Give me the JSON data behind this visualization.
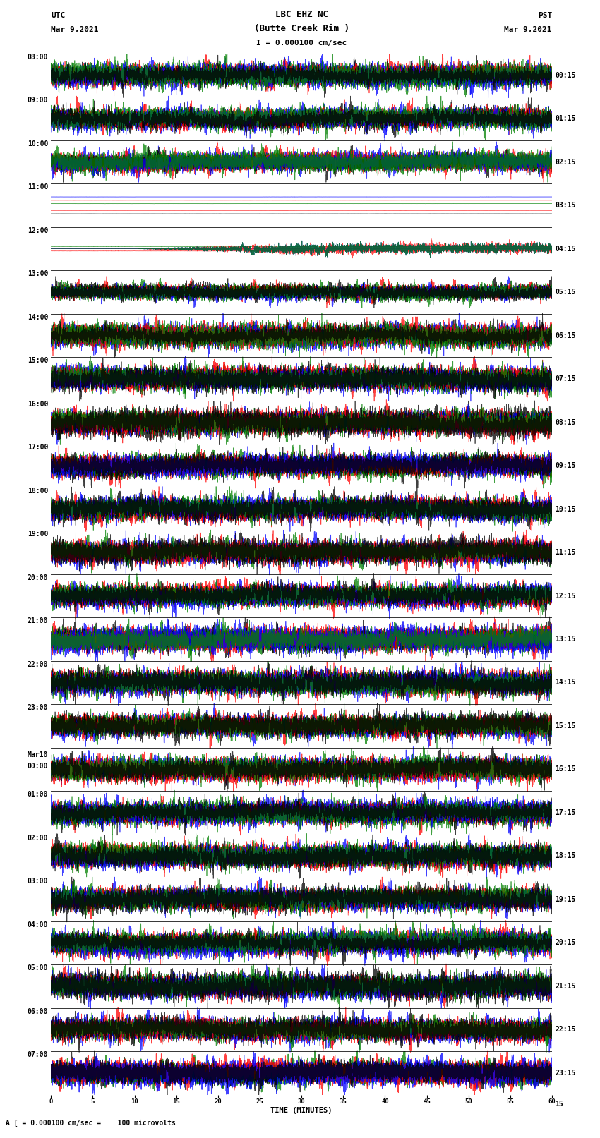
{
  "title_line1": "LBC EHZ NC",
  "title_line2": "(Butte Creek Rim )",
  "scale_text": "I = 0.000100 cm/sec",
  "left_label_top": "UTC",
  "left_label_date": "Mar 9,2021",
  "right_label_top": "PST",
  "right_label_date": "Mar 9,2021",
  "bottom_label": "A [ = 0.000100 cm/sec =    100 microvolts",
  "left_times": [
    "08:00",
    "09:00",
    "10:00",
    "11:00",
    "12:00",
    "13:00",
    "14:00",
    "15:00",
    "16:00",
    "17:00",
    "18:00",
    "19:00",
    "20:00",
    "21:00",
    "22:00",
    "23:00",
    "Mar10\n00:00",
    "01:00",
    "02:00",
    "03:00",
    "04:00",
    "05:00",
    "06:00",
    "07:00"
  ],
  "right_times": [
    "00:15",
    "01:15",
    "02:15",
    "03:15",
    "04:15",
    "05:15",
    "06:15",
    "07:15",
    "08:15",
    "09:15",
    "10:15",
    "11:15",
    "12:15",
    "13:15",
    "14:15",
    "15:15",
    "16:15",
    "17:15",
    "18:15",
    "19:15",
    "20:15",
    "21:15",
    "22:15",
    "23:15"
  ],
  "bg_color": "#ffffff",
  "n_traces": 24,
  "seed": 42,
  "trace_dominant_colors": [
    "red",
    "red",
    "red",
    "black",
    "red",
    "red",
    "red",
    "blue",
    "red",
    "green",
    "red",
    "red",
    "blue",
    "black",
    "red",
    "blue",
    "blue",
    "red",
    "red",
    "red",
    "red",
    "red",
    "blue",
    "green"
  ],
  "trace_amplitudes": [
    1.0,
    1.0,
    0.9,
    0.12,
    0.08,
    0.7,
    1.0,
    1.0,
    1.0,
    1.0,
    1.0,
    1.0,
    1.0,
    1.0,
    1.0,
    1.0,
    1.0,
    1.0,
    1.0,
    1.0,
    1.0,
    1.0,
    1.0,
    1.0
  ]
}
